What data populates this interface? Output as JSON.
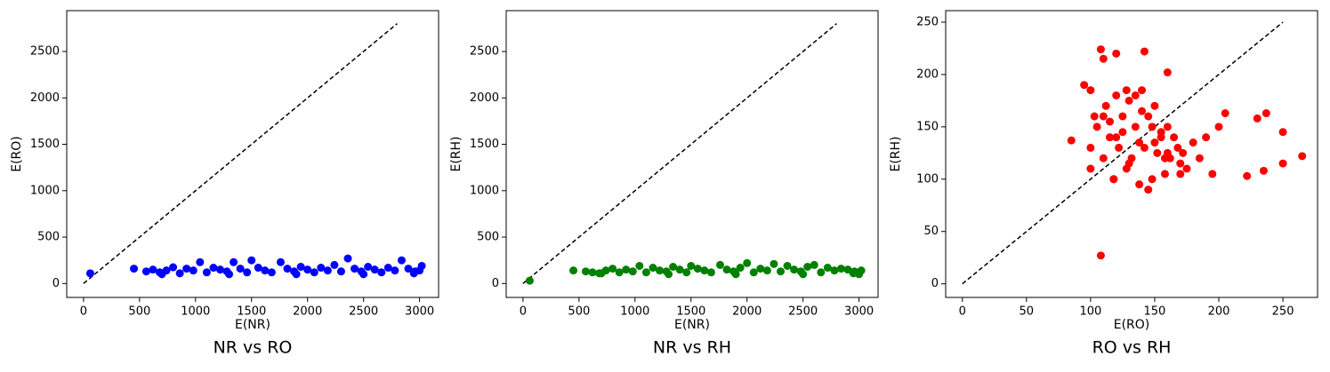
{
  "chart_data": [
    {
      "type": "scatter",
      "title": "NR vs RO",
      "x_label": "E(NR)",
      "y_label": "E(RO)",
      "color": "#0000ff",
      "x": [
        60,
        450,
        560,
        620,
        680,
        740,
        800,
        860,
        920,
        980,
        1040,
        1100,
        1160,
        1220,
        1280,
        1340,
        1400,
        1460,
        1500,
        1560,
        1620,
        1680,
        1760,
        1820,
        1880,
        1940,
        2000,
        2060,
        2120,
        2180,
        2240,
        2300,
        2360,
        2420,
        2480,
        2540,
        2600,
        2660,
        2720,
        2780,
        2840,
        2900,
        2960,
        3020,
        3000,
        700,
        1300,
        1900,
        2500,
        2950
      ],
      "values": [
        110,
        160,
        130,
        150,
        120,
        140,
        175,
        110,
        160,
        140,
        230,
        120,
        170,
        150,
        130,
        230,
        160,
        120,
        250,
        170,
        140,
        120,
        230,
        160,
        130,
        180,
        150,
        120,
        170,
        140,
        200,
        130,
        270,
        160,
        130,
        180,
        150,
        120,
        170,
        140,
        250,
        160,
        130,
        190,
        140,
        100,
        100,
        100,
        100,
        110
      ],
      "reference_line": {
        "x": [
          0,
          2800
        ],
        "y": [
          0,
          2800
        ]
      },
      "xlim": [
        -150,
        3170
      ],
      "ylim": [
        -150,
        2940
      ],
      "xticks": [
        0,
        500,
        1000,
        1500,
        2000,
        2500,
        3000
      ],
      "yticks": [
        0,
        500,
        1000,
        1500,
        2000,
        2500
      ]
    },
    {
      "type": "scatter",
      "title": "NR vs RH",
      "x_label": "E(NR)",
      "y_label": "E(RH)",
      "color": "#008000",
      "x": [
        60,
        450,
        560,
        620,
        680,
        740,
        800,
        860,
        920,
        980,
        1040,
        1100,
        1160,
        1220,
        1280,
        1340,
        1400,
        1460,
        1500,
        1560,
        1620,
        1680,
        1760,
        1820,
        1880,
        1940,
        2000,
        2060,
        2120,
        2180,
        2240,
        2300,
        2360,
        2420,
        2480,
        2540,
        2600,
        2660,
        2720,
        2780,
        2840,
        2900,
        2960,
        3020,
        3000,
        700,
        1300,
        1900,
        2500,
        2950
      ],
      "values": [
        30,
        140,
        130,
        120,
        110,
        140,
        160,
        120,
        150,
        130,
        190,
        120,
        170,
        140,
        130,
        180,
        150,
        120,
        190,
        160,
        140,
        120,
        200,
        150,
        130,
        170,
        220,
        120,
        160,
        140,
        210,
        130,
        190,
        150,
        130,
        180,
        200,
        120,
        170,
        140,
        160,
        150,
        130,
        140,
        100,
        110,
        100,
        100,
        100,
        110
      ],
      "reference_line": {
        "x": [
          0,
          2800
        ],
        "y": [
          0,
          2800
        ]
      },
      "xlim": [
        -150,
        3170
      ],
      "ylim": [
        -150,
        2940
      ],
      "xticks": [
        0,
        500,
        1000,
        1500,
        2000,
        2500,
        3000
      ],
      "yticks": [
        0,
        500,
        1000,
        1500,
        2000,
        2500
      ]
    },
    {
      "type": "scatter",
      "title": "RO vs RH",
      "x_label": "E(RO)",
      "y_label": "E(RH)",
      "color": "#ff0000",
      "x": [
        108,
        108,
        110,
        120,
        142,
        160,
        237,
        230,
        250,
        265,
        222,
        235,
        250,
        205,
        200,
        190,
        195,
        85,
        95,
        100,
        100,
        105,
        110,
        112,
        115,
        118,
        120,
        122,
        125,
        128,
        130,
        132,
        135,
        138,
        140,
        142,
        145,
        148,
        150,
        152,
        155,
        158,
        160,
        162,
        165,
        168,
        170,
        172,
        175,
        180,
        185,
        100,
        110,
        120,
        130,
        140,
        150,
        160,
        170,
        115,
        125,
        135,
        145,
        155,
        103,
        118,
        128,
        138,
        148,
        158
      ],
      "values": [
        27,
        224,
        215,
        220,
        222,
        202,
        163,
        158,
        145,
        122,
        103,
        108,
        115,
        163,
        150,
        140,
        105,
        137,
        190,
        185,
        110,
        150,
        120,
        170,
        140,
        100,
        180,
        130,
        160,
        110,
        175,
        120,
        150,
        95,
        185,
        130,
        160,
        100,
        170,
        125,
        145,
        105,
        150,
        120,
        140,
        130,
        115,
        125,
        110,
        135,
        120,
        130,
        160,
        140,
        115,
        165,
        135,
        125,
        105,
        155,
        145,
        180,
        90,
        140,
        160,
        100,
        185,
        135,
        150,
        120
      ],
      "reference_line": {
        "x": [
          0,
          250
        ],
        "y": [
          0,
          250
        ]
      },
      "xlim": [
        -13,
        277
      ],
      "ylim": [
        -13,
        261
      ],
      "xticks": [
        0,
        50,
        100,
        150,
        200,
        250
      ],
      "yticks": [
        0,
        50,
        100,
        150,
        200,
        250
      ]
    }
  ]
}
